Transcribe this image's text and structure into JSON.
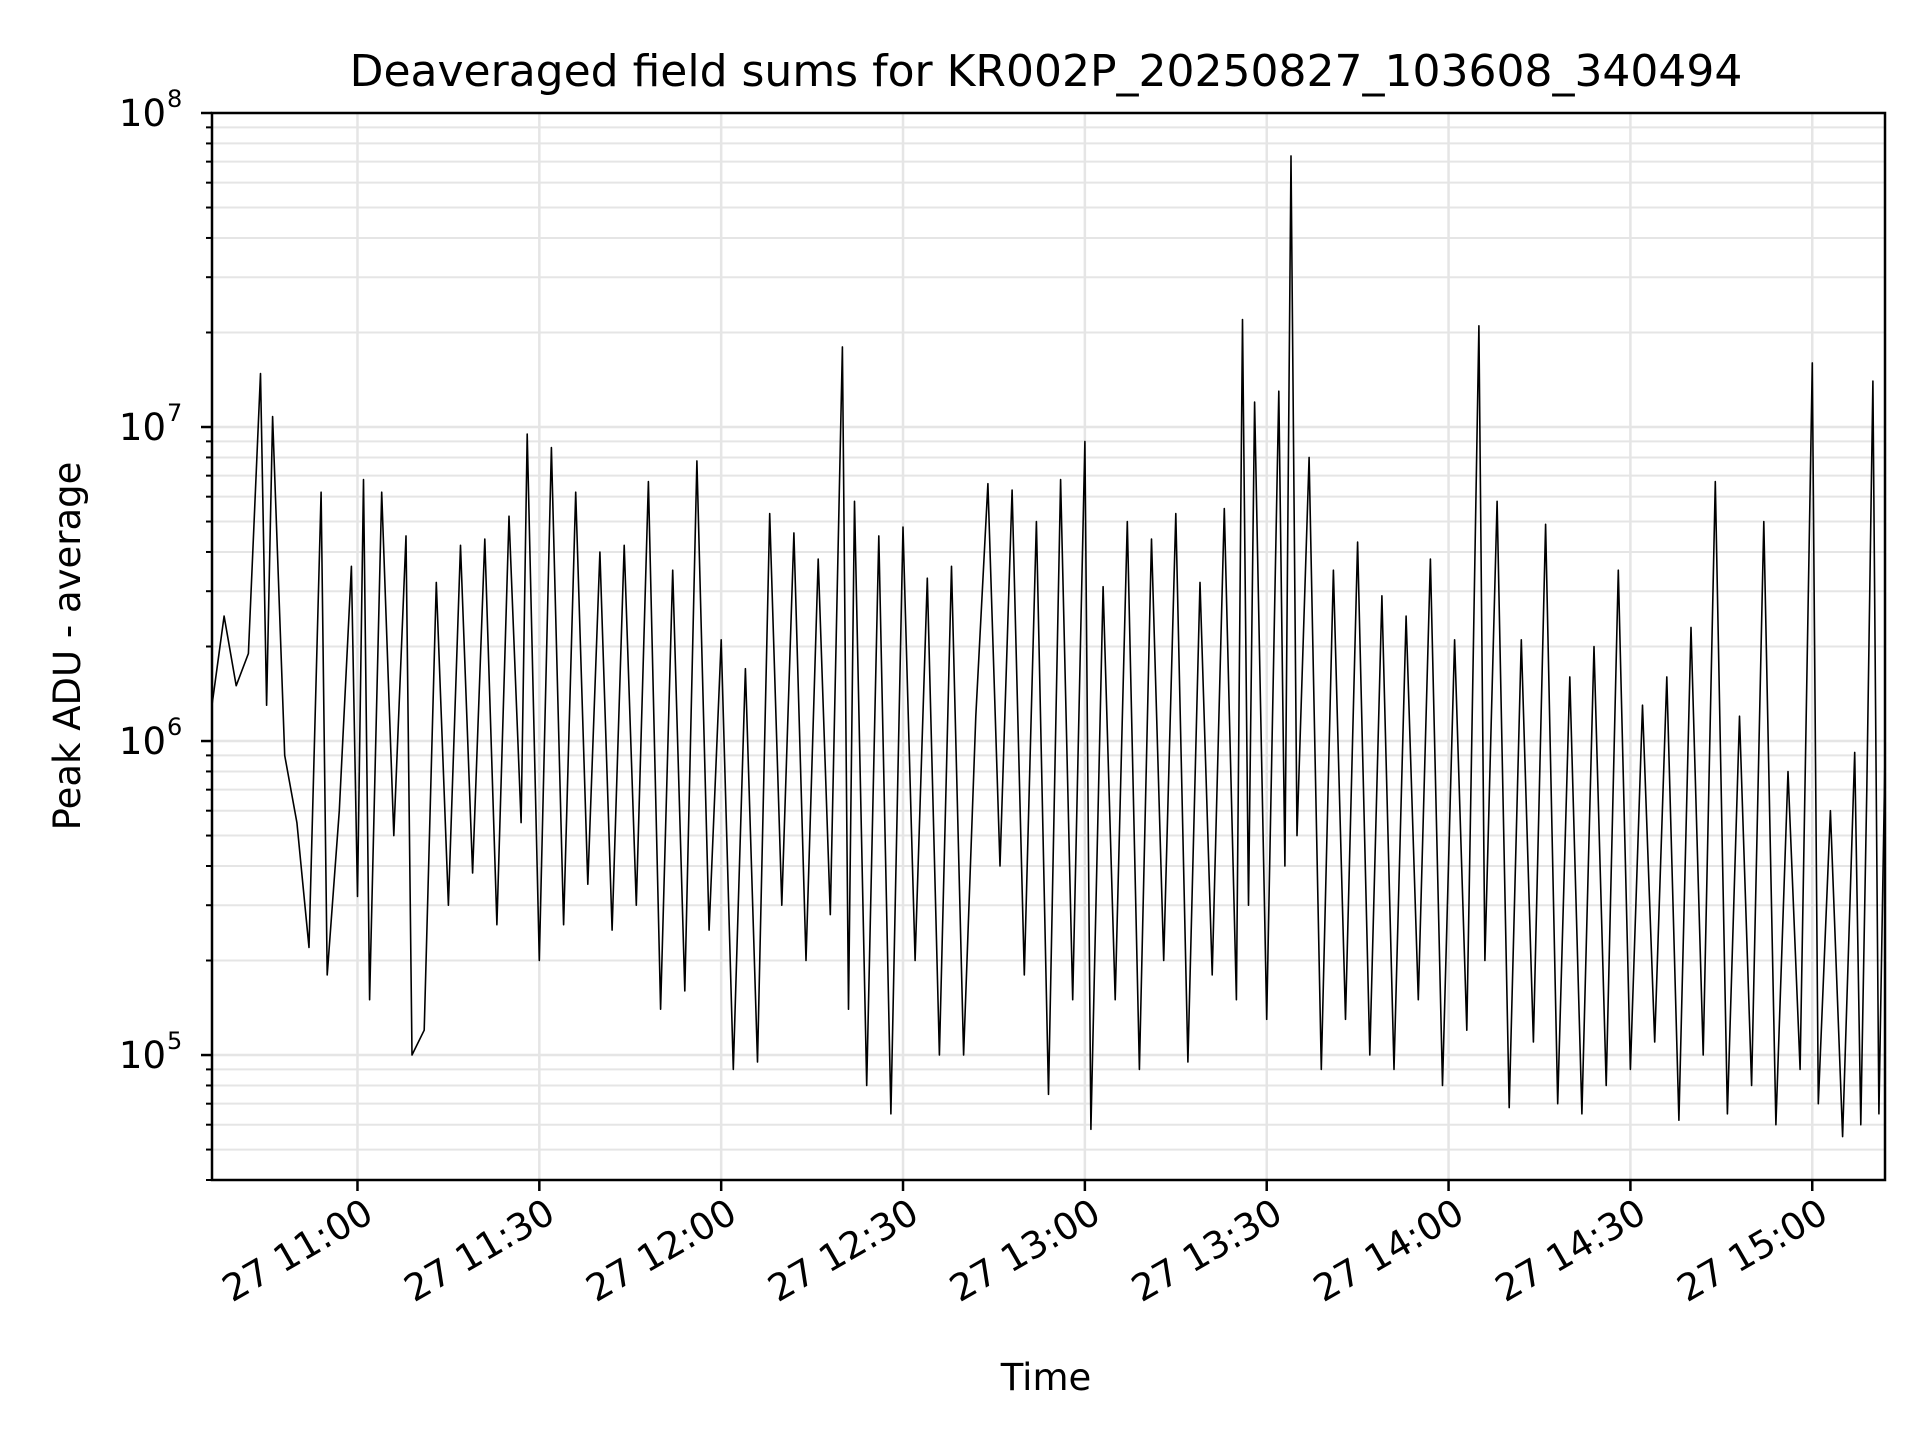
{
  "chart_data": {
    "type": "line",
    "title": "Deaveraged field sums for KR002P_20250827_103608_340494",
    "xlabel": "Time",
    "ylabel": "Peak ADU - average",
    "x_range": [
      "2025-08-27 10:36",
      "2025-08-27 15:12"
    ],
    "yscale": "log",
    "ylim": [
      40000,
      100000000
    ],
    "grid": true,
    "legend": "none",
    "line_color": "#000000",
    "grid_color": "#e5e5e5",
    "x_ticks": [
      {
        "label": "27 11:00",
        "time": "11:00"
      },
      {
        "label": "27 11:30",
        "time": "11:30"
      },
      {
        "label": "27 12:00",
        "time": "12:00"
      },
      {
        "label": "27 12:30",
        "time": "12:30"
      },
      {
        "label": "27 13:00",
        "time": "13:00"
      },
      {
        "label": "27 13:30",
        "time": "13:30"
      },
      {
        "label": "27 14:00",
        "time": "14:00"
      },
      {
        "label": "27 14:30",
        "time": "14:30"
      },
      {
        "label": "27 15:00",
        "time": "15:00"
      }
    ],
    "y_ticks": [
      {
        "base": "10",
        "exp": "5",
        "value": 100000
      },
      {
        "base": "10",
        "exp": "6",
        "value": 1000000
      },
      {
        "base": "10",
        "exp": "7",
        "value": 10000000
      },
      {
        "base": "10",
        "exp": "8",
        "value": 100000000
      }
    ],
    "series": [
      {
        "points": [
          [
            "10:36",
            1300000
          ],
          [
            "10:38",
            2500000
          ],
          [
            "10:40",
            1500000
          ],
          [
            "10:42",
            1900000
          ],
          [
            "10:44",
            14800000
          ],
          [
            "10:45",
            1300000
          ],
          [
            "10:46",
            10800000
          ],
          [
            "10:48",
            900000
          ],
          [
            "10:50",
            550000
          ],
          [
            "10:52",
            220000
          ],
          [
            "10:54",
            6200000
          ],
          [
            "10:55",
            180000
          ],
          [
            "10:57",
            600000
          ],
          [
            "10:59",
            3600000
          ],
          [
            "11:00",
            320000
          ],
          [
            "11:01",
            6800000
          ],
          [
            "11:02",
            150000
          ],
          [
            "11:04",
            6200000
          ],
          [
            "11:06",
            500000
          ],
          [
            "11:08",
            4500000
          ],
          [
            "11:09",
            100000
          ],
          [
            "11:11",
            120000
          ],
          [
            "11:13",
            3200000
          ],
          [
            "11:15",
            300000
          ],
          [
            "11:17",
            4200000
          ],
          [
            "11:19",
            380000
          ],
          [
            "11:21",
            4400000
          ],
          [
            "11:23",
            260000
          ],
          [
            "11:25",
            5200000
          ],
          [
            "11:27",
            550000
          ],
          [
            "11:28",
            9500000
          ],
          [
            "11:30",
            200000
          ],
          [
            "11:32",
            8600000
          ],
          [
            "11:34",
            260000
          ],
          [
            "11:36",
            6200000
          ],
          [
            "11:38",
            350000
          ],
          [
            "11:40",
            4000000
          ],
          [
            "11:42",
            250000
          ],
          [
            "11:44",
            4200000
          ],
          [
            "11:46",
            300000
          ],
          [
            "11:48",
            6700000
          ],
          [
            "11:50",
            140000
          ],
          [
            "11:52",
            3500000
          ],
          [
            "11:54",
            160000
          ],
          [
            "11:56",
            7800000
          ],
          [
            "11:58",
            250000
          ],
          [
            "12:00",
            2100000
          ],
          [
            "12:02",
            90000
          ],
          [
            "12:04",
            1700000
          ],
          [
            "12:06",
            95000
          ],
          [
            "12:08",
            5300000
          ],
          [
            "12:10",
            300000
          ],
          [
            "12:12",
            4600000
          ],
          [
            "12:14",
            200000
          ],
          [
            "12:16",
            3800000
          ],
          [
            "12:18",
            280000
          ],
          [
            "12:20",
            18000000
          ],
          [
            "12:21",
            140000
          ],
          [
            "12:22",
            5800000
          ],
          [
            "12:24",
            80000
          ],
          [
            "12:26",
            4500000
          ],
          [
            "12:28",
            65000
          ],
          [
            "12:30",
            4800000
          ],
          [
            "12:32",
            200000
          ],
          [
            "12:34",
            3300000
          ],
          [
            "12:36",
            100000
          ],
          [
            "12:38",
            3600000
          ],
          [
            "12:40",
            100000
          ],
          [
            "12:42",
            1200000
          ],
          [
            "12:44",
            6600000
          ],
          [
            "12:46",
            400000
          ],
          [
            "12:48",
            6300000
          ],
          [
            "12:50",
            180000
          ],
          [
            "12:52",
            5000000
          ],
          [
            "12:54",
            75000
          ],
          [
            "12:56",
            6800000
          ],
          [
            "12:58",
            150000
          ],
          [
            "13:00",
            9000000
          ],
          [
            "13:01",
            58000
          ],
          [
            "13:03",
            3100000
          ],
          [
            "13:05",
            150000
          ],
          [
            "13:07",
            5000000
          ],
          [
            "13:09",
            90000
          ],
          [
            "13:11",
            4400000
          ],
          [
            "13:13",
            200000
          ],
          [
            "13:15",
            5300000
          ],
          [
            "13:17",
            95000
          ],
          [
            "13:19",
            3200000
          ],
          [
            "13:21",
            180000
          ],
          [
            "13:23",
            5500000
          ],
          [
            "13:25",
            150000
          ],
          [
            "13:26",
            22000000
          ],
          [
            "13:27",
            300000
          ],
          [
            "13:28",
            12000000
          ],
          [
            "13:30",
            130000
          ],
          [
            "13:32",
            13000000
          ],
          [
            "13:33",
            400000
          ],
          [
            "13:34",
            73000000
          ],
          [
            "13:35",
            500000
          ],
          [
            "13:37",
            8000000
          ],
          [
            "13:39",
            90000
          ],
          [
            "13:41",
            3500000
          ],
          [
            "13:43",
            130000
          ],
          [
            "13:45",
            4300000
          ],
          [
            "13:47",
            100000
          ],
          [
            "13:49",
            2900000
          ],
          [
            "13:51",
            90000
          ],
          [
            "13:53",
            2500000
          ],
          [
            "13:55",
            150000
          ],
          [
            "13:57",
            3800000
          ],
          [
            "13:59",
            80000
          ],
          [
            "14:01",
            2100000
          ],
          [
            "14:03",
            120000
          ],
          [
            "14:05",
            21000000
          ],
          [
            "14:06",
            200000
          ],
          [
            "14:08",
            5800000
          ],
          [
            "14:10",
            68000
          ],
          [
            "14:12",
            2100000
          ],
          [
            "14:14",
            110000
          ],
          [
            "14:16",
            4900000
          ],
          [
            "14:18",
            70000
          ],
          [
            "14:20",
            1600000
          ],
          [
            "14:22",
            65000
          ],
          [
            "14:24",
            2000000
          ],
          [
            "14:26",
            80000
          ],
          [
            "14:28",
            3500000
          ],
          [
            "14:30",
            90000
          ],
          [
            "14:32",
            1300000
          ],
          [
            "14:34",
            110000
          ],
          [
            "14:36",
            1600000
          ],
          [
            "14:38",
            62000
          ],
          [
            "14:40",
            2300000
          ],
          [
            "14:42",
            100000
          ],
          [
            "14:44",
            6700000
          ],
          [
            "14:46",
            65000
          ],
          [
            "14:48",
            1200000
          ],
          [
            "14:50",
            80000
          ],
          [
            "14:52",
            5000000
          ],
          [
            "14:54",
            60000
          ],
          [
            "14:56",
            800000
          ],
          [
            "14:58",
            90000
          ],
          [
            "15:00",
            16000000
          ],
          [
            "15:01",
            70000
          ],
          [
            "15:03",
            600000
          ],
          [
            "15:05",
            55000
          ],
          [
            "15:07",
            920000
          ],
          [
            "15:08",
            60000
          ],
          [
            "15:09",
            700000
          ],
          [
            "15:10",
            14000000
          ],
          [
            "15:11",
            65000
          ],
          [
            "15:12",
            900000
          ]
        ]
      }
    ]
  }
}
